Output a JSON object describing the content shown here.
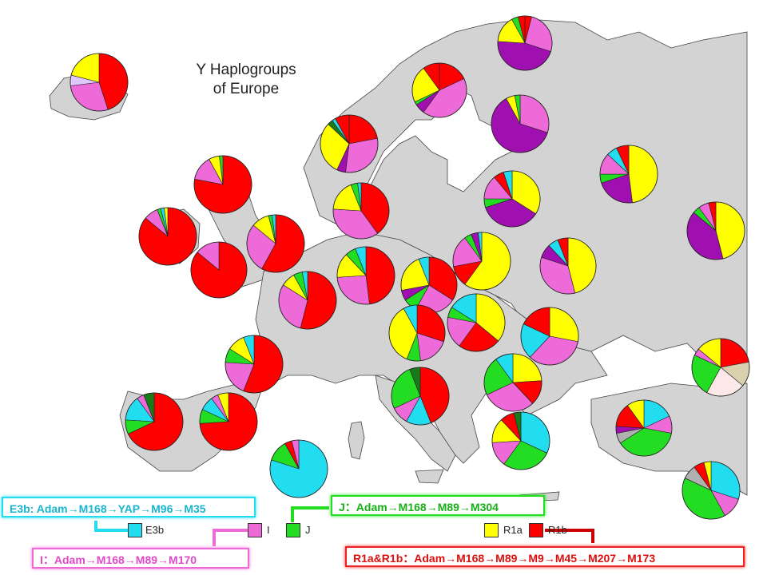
{
  "title_line1": "Y Haplogroups",
  "title_line2": "of Europe",
  "colors": {
    "E3b": "#22dcf0",
    "I": "#ee6ad8",
    "J": "#22dd22",
    "R1a": "#ffff00",
    "R1b": "#ff0000",
    "N": "#a010b0",
    "G": "#b0b0b0",
    "other_dark": "#1a7a1a",
    "other_light": "#ddc8ff",
    "other_tan": "#d9d0b0",
    "other_pale": "#fde8e8"
  },
  "legend": {
    "E3b": "E3b",
    "I": "I",
    "J": "J",
    "R1a": "R1a",
    "R1b": "R1b"
  },
  "paths": {
    "E3b": "E3b: Adam→M168→YAP→M96→M35",
    "J": "J：Adam→M168→M89→M304",
    "I": "I：Adam→M168→M89→M170",
    "R1": "R1a&R1b：Adam→M168→M89→M9→M45→M207→M173"
  },
  "pies": [
    {
      "name": "iceland",
      "slices": [
        {
          "h": "R1b",
          "v": 45
        },
        {
          "h": "I",
          "v": 28
        },
        {
          "h": "other_light",
          "v": 6
        },
        {
          "h": "R1a",
          "v": 21
        }
      ]
    },
    {
      "name": "norway-west",
      "slices": [
        {
          "h": "R1b",
          "v": 22
        },
        {
          "h": "I",
          "v": 30
        },
        {
          "h": "N",
          "v": 5
        },
        {
          "h": "R1a",
          "v": 30
        },
        {
          "h": "other_dark",
          "v": 3
        },
        {
          "h": "E3b",
          "v": 2
        },
        {
          "h": "R1b",
          "v": 8
        }
      ]
    },
    {
      "name": "sweden-north",
      "slices": [
        {
          "h": "R1b",
          "v": 18
        },
        {
          "h": "I",
          "v": 42
        },
        {
          "h": "N",
          "v": 6
        },
        {
          "h": "J",
          "v": 2
        },
        {
          "h": "R1a",
          "v": 22
        },
        {
          "h": "R1b",
          "v": 10
        }
      ]
    },
    {
      "name": "finland-north",
      "slices": [
        {
          "h": "R1b",
          "v": 4
        },
        {
          "h": "I",
          "v": 26
        },
        {
          "h": "N",
          "v": 46
        },
        {
          "h": "R1a",
          "v": 16
        },
        {
          "h": "J",
          "v": 4
        },
        {
          "h": "R1b",
          "v": 4
        }
      ]
    },
    {
      "name": "finland-south",
      "slices": [
        {
          "h": "I",
          "v": 30
        },
        {
          "h": "N",
          "v": 62
        },
        {
          "h": "R1a",
          "v": 5
        },
        {
          "h": "J",
          "v": 3
        }
      ]
    },
    {
      "name": "scotland",
      "slices": [
        {
          "h": "R1b",
          "v": 78
        },
        {
          "h": "I",
          "v": 14
        },
        {
          "h": "R1a",
          "v": 6
        },
        {
          "h": "J",
          "v": 2
        }
      ]
    },
    {
      "name": "denmark",
      "slices": [
        {
          "h": "R1b",
          "v": 40
        },
        {
          "h": "I",
          "v": 36
        },
        {
          "h": "R1a",
          "v": 18
        },
        {
          "h": "J",
          "v": 4
        },
        {
          "h": "E3b",
          "v": 2
        }
      ]
    },
    {
      "name": "estonia",
      "slices": [
        {
          "h": "R1a",
          "v": 34
        },
        {
          "h": "N",
          "v": 36
        },
        {
          "h": "J",
          "v": 5
        },
        {
          "h": "I",
          "v": 14
        },
        {
          "h": "R1b",
          "v": 6
        },
        {
          "h": "E3b",
          "v": 5
        }
      ]
    },
    {
      "name": "russia-north",
      "slices": [
        {
          "h": "R1a",
          "v": 48
        },
        {
          "h": "N",
          "v": 22
        },
        {
          "h": "J",
          "v": 5
        },
        {
          "h": "I",
          "v": 12
        },
        {
          "h": "E3b",
          "v": 6
        },
        {
          "h": "R1b",
          "v": 7
        }
      ]
    },
    {
      "name": "russia-east",
      "slices": [
        {
          "h": "R1a",
          "v": 46
        },
        {
          "h": "N",
          "v": 40
        },
        {
          "h": "J",
          "v": 4
        },
        {
          "h": "I",
          "v": 6
        },
        {
          "h": "R1b",
          "v": 4
        }
      ]
    },
    {
      "name": "ireland",
      "slices": [
        {
          "h": "R1b",
          "v": 86
        },
        {
          "h": "I",
          "v": 8
        },
        {
          "h": "J",
          "v": 2
        },
        {
          "h": "E3b",
          "v": 2
        },
        {
          "h": "R1a",
          "v": 2
        }
      ]
    },
    {
      "name": "england-north",
      "slices": [
        {
          "h": "R1b",
          "v": 58
        },
        {
          "h": "I",
          "v": 28
        },
        {
          "h": "R1a",
          "v": 10
        },
        {
          "h": "J",
          "v": 2
        },
        {
          "h": "E3b",
          "v": 2
        }
      ]
    },
    {
      "name": "wales",
      "slices": [
        {
          "h": "R1b",
          "v": 86
        },
        {
          "h": "I",
          "v": 14
        }
      ]
    },
    {
      "name": "netherlands",
      "slices": [
        {
          "h": "R1b",
          "v": 54
        },
        {
          "h": "I",
          "v": 30
        },
        {
          "h": "R1a",
          "v": 8
        },
        {
          "h": "J",
          "v": 5
        },
        {
          "h": "E3b",
          "v": 3
        }
      ]
    },
    {
      "name": "germany-north",
      "slices": [
        {
          "h": "R1b",
          "v": 48
        },
        {
          "h": "I",
          "v": 26
        },
        {
          "h": "R1a",
          "v": 14
        },
        {
          "h": "J",
          "v": 6
        },
        {
          "h": "E3b",
          "v": 6
        }
      ]
    },
    {
      "name": "poland",
      "slices": [
        {
          "h": "R1a",
          "v": 60
        },
        {
          "h": "R1b",
          "v": 12
        },
        {
          "h": "I",
          "v": 18
        },
        {
          "h": "J",
          "v": 4
        },
        {
          "h": "N",
          "v": 4
        },
        {
          "h": "E3b",
          "v": 2
        }
      ]
    },
    {
      "name": "belarus",
      "slices": [
        {
          "h": "R1a",
          "v": 46
        },
        {
          "h": "I",
          "v": 34
        },
        {
          "h": "N",
          "v": 8
        },
        {
          "h": "E3b",
          "v": 6
        },
        {
          "h": "R1b",
          "v": 6
        }
      ]
    },
    {
      "name": "france-north",
      "slices": [
        {
          "h": "R1b",
          "v": 56
        },
        {
          "h": "I",
          "v": 20
        },
        {
          "h": "J",
          "v": 8
        },
        {
          "h": "R1a",
          "v": 10
        },
        {
          "h": "E3b",
          "v": 6
        }
      ]
    },
    {
      "name": "germany-south",
      "slices": [
        {
          "h": "R1b",
          "v": 34
        },
        {
          "h": "I",
          "v": 24
        },
        {
          "h": "J",
          "v": 8
        },
        {
          "h": "N",
          "v": 6
        },
        {
          "h": "R1a",
          "v": 22
        },
        {
          "h": "E3b",
          "v": 6
        }
      ]
    },
    {
      "name": "czechia",
      "slices": [
        {
          "h": "R1a",
          "v": 36
        },
        {
          "h": "R1b",
          "v": 24
        },
        {
          "h": "I",
          "v": 18
        },
        {
          "h": "J",
          "v": 6
        },
        {
          "h": "E3b",
          "v": 16
        }
      ]
    },
    {
      "name": "ukraine",
      "slices": [
        {
          "h": "R1a",
          "v": 44
        },
        {
          "h": "I",
          "v": 26
        },
        {
          "h": "J",
          "v": 14
        },
        {
          "h": "R1b",
          "v": 8
        },
        {
          "h": "E3b",
          "v": 8
        }
      ]
    },
    {
      "name": "france-west",
      "slices": [
        {
          "h": "R1b",
          "v": 94
        },
        {
          "h": "I",
          "v": 6
        }
      ]
    },
    {
      "name": "switzerland",
      "slices": [
        {
          "h": "R1b",
          "v": 30
        },
        {
          "h": "I",
          "v": 18
        },
        {
          "h": "J",
          "v": 8
        },
        {
          "h": "R1a",
          "v": 36
        },
        {
          "h": "E3b",
          "v": 8
        }
      ]
    },
    {
      "name": "hungary",
      "slices": [
        {
          "h": "R1a",
          "v": 28
        },
        {
          "h": "I",
          "v": 34
        },
        {
          "h": "E3b",
          "v": 20
        },
        {
          "h": "R1b",
          "v": 18
        }
      ]
    },
    {
      "name": "romania",
      "slices": [
        {
          "h": "R1a",
          "v": 24
        },
        {
          "h": "R1b",
          "v": 14
        },
        {
          "h": "I",
          "v": 30
        },
        {
          "h": "J",
          "v": 22
        },
        {
          "h": "E3b",
          "v": 10
        }
      ]
    },
    {
      "name": "caucasus",
      "slices": [
        {
          "h": "R1b",
          "v": 22
        },
        {
          "h": "other_tan",
          "v": 14
        },
        {
          "h": "other_pale",
          "v": 22
        },
        {
          "h": "J",
          "v": 24
        },
        {
          "h": "I",
          "v": 4
        },
        {
          "h": "R1a",
          "v": 14
        }
      ]
    },
    {
      "name": "spain-west",
      "slices": [
        {
          "h": "R1b",
          "v": 68
        },
        {
          "h": "J",
          "v": 8
        },
        {
          "h": "E3b",
          "v": 14
        },
        {
          "h": "I",
          "v": 4
        },
        {
          "h": "other_dark",
          "v": 6
        }
      ]
    },
    {
      "name": "spain-east",
      "slices": [
        {
          "h": "R1b",
          "v": 74
        },
        {
          "h": "J",
          "v": 8
        },
        {
          "h": "E3b",
          "v": 8
        },
        {
          "h": "I",
          "v": 4
        },
        {
          "h": "R1a",
          "v": 6
        }
      ]
    },
    {
      "name": "italy",
      "slices": [
        {
          "h": "R1b",
          "v": 44
        },
        {
          "h": "E3b",
          "v": 14
        },
        {
          "h": "I",
          "v": 10
        },
        {
          "h": "J",
          "v": 26
        },
        {
          "h": "other_dark",
          "v": 6
        }
      ]
    },
    {
      "name": "balkans",
      "slices": [
        {
          "h": "R1a",
          "v": 14
        },
        {
          "h": "E3b",
          "v": 24
        },
        {
          "h": "I",
          "v": 50
        },
        {
          "h": "J",
          "v": 6
        },
        {
          "h": "R1b",
          "v": 6
        }
      ]
    },
    {
      "name": "greece",
      "slices": [
        {
          "h": "E3b",
          "v": 32
        },
        {
          "h": "J",
          "v": 28
        },
        {
          "h": "I",
          "v": 14
        },
        {
          "h": "R1a",
          "v": 14
        },
        {
          "h": "R1b",
          "v": 8
        },
        {
          "h": "other_dark",
          "v": 4
        }
      ]
    },
    {
      "name": "turkey",
      "slices": [
        {
          "h": "E3b",
          "v": 18
        },
        {
          "h": "I",
          "v": 10
        },
        {
          "h": "J",
          "v": 38
        },
        {
          "h": "G",
          "v": 6
        },
        {
          "h": "N",
          "v": 4
        },
        {
          "h": "R1b",
          "v": 14
        },
        {
          "h": "R1a",
          "v": 10
        }
      ]
    },
    {
      "name": "sardinia",
      "slices": [
        {
          "h": "E3b",
          "v": 80
        },
        {
          "h": "J",
          "v": 12
        },
        {
          "h": "R1b",
          "v": 4
        },
        {
          "h": "I",
          "v": 4
        }
      ]
    },
    {
      "name": "levant",
      "slices": [
        {
          "h": "E3b",
          "v": 30
        },
        {
          "h": "I",
          "v": 12
        },
        {
          "h": "J",
          "v": 40
        },
        {
          "h": "G",
          "v": 8
        },
        {
          "h": "R1b",
          "v": 6
        },
        {
          "h": "R1a",
          "v": 4
        }
      ]
    }
  ]
}
